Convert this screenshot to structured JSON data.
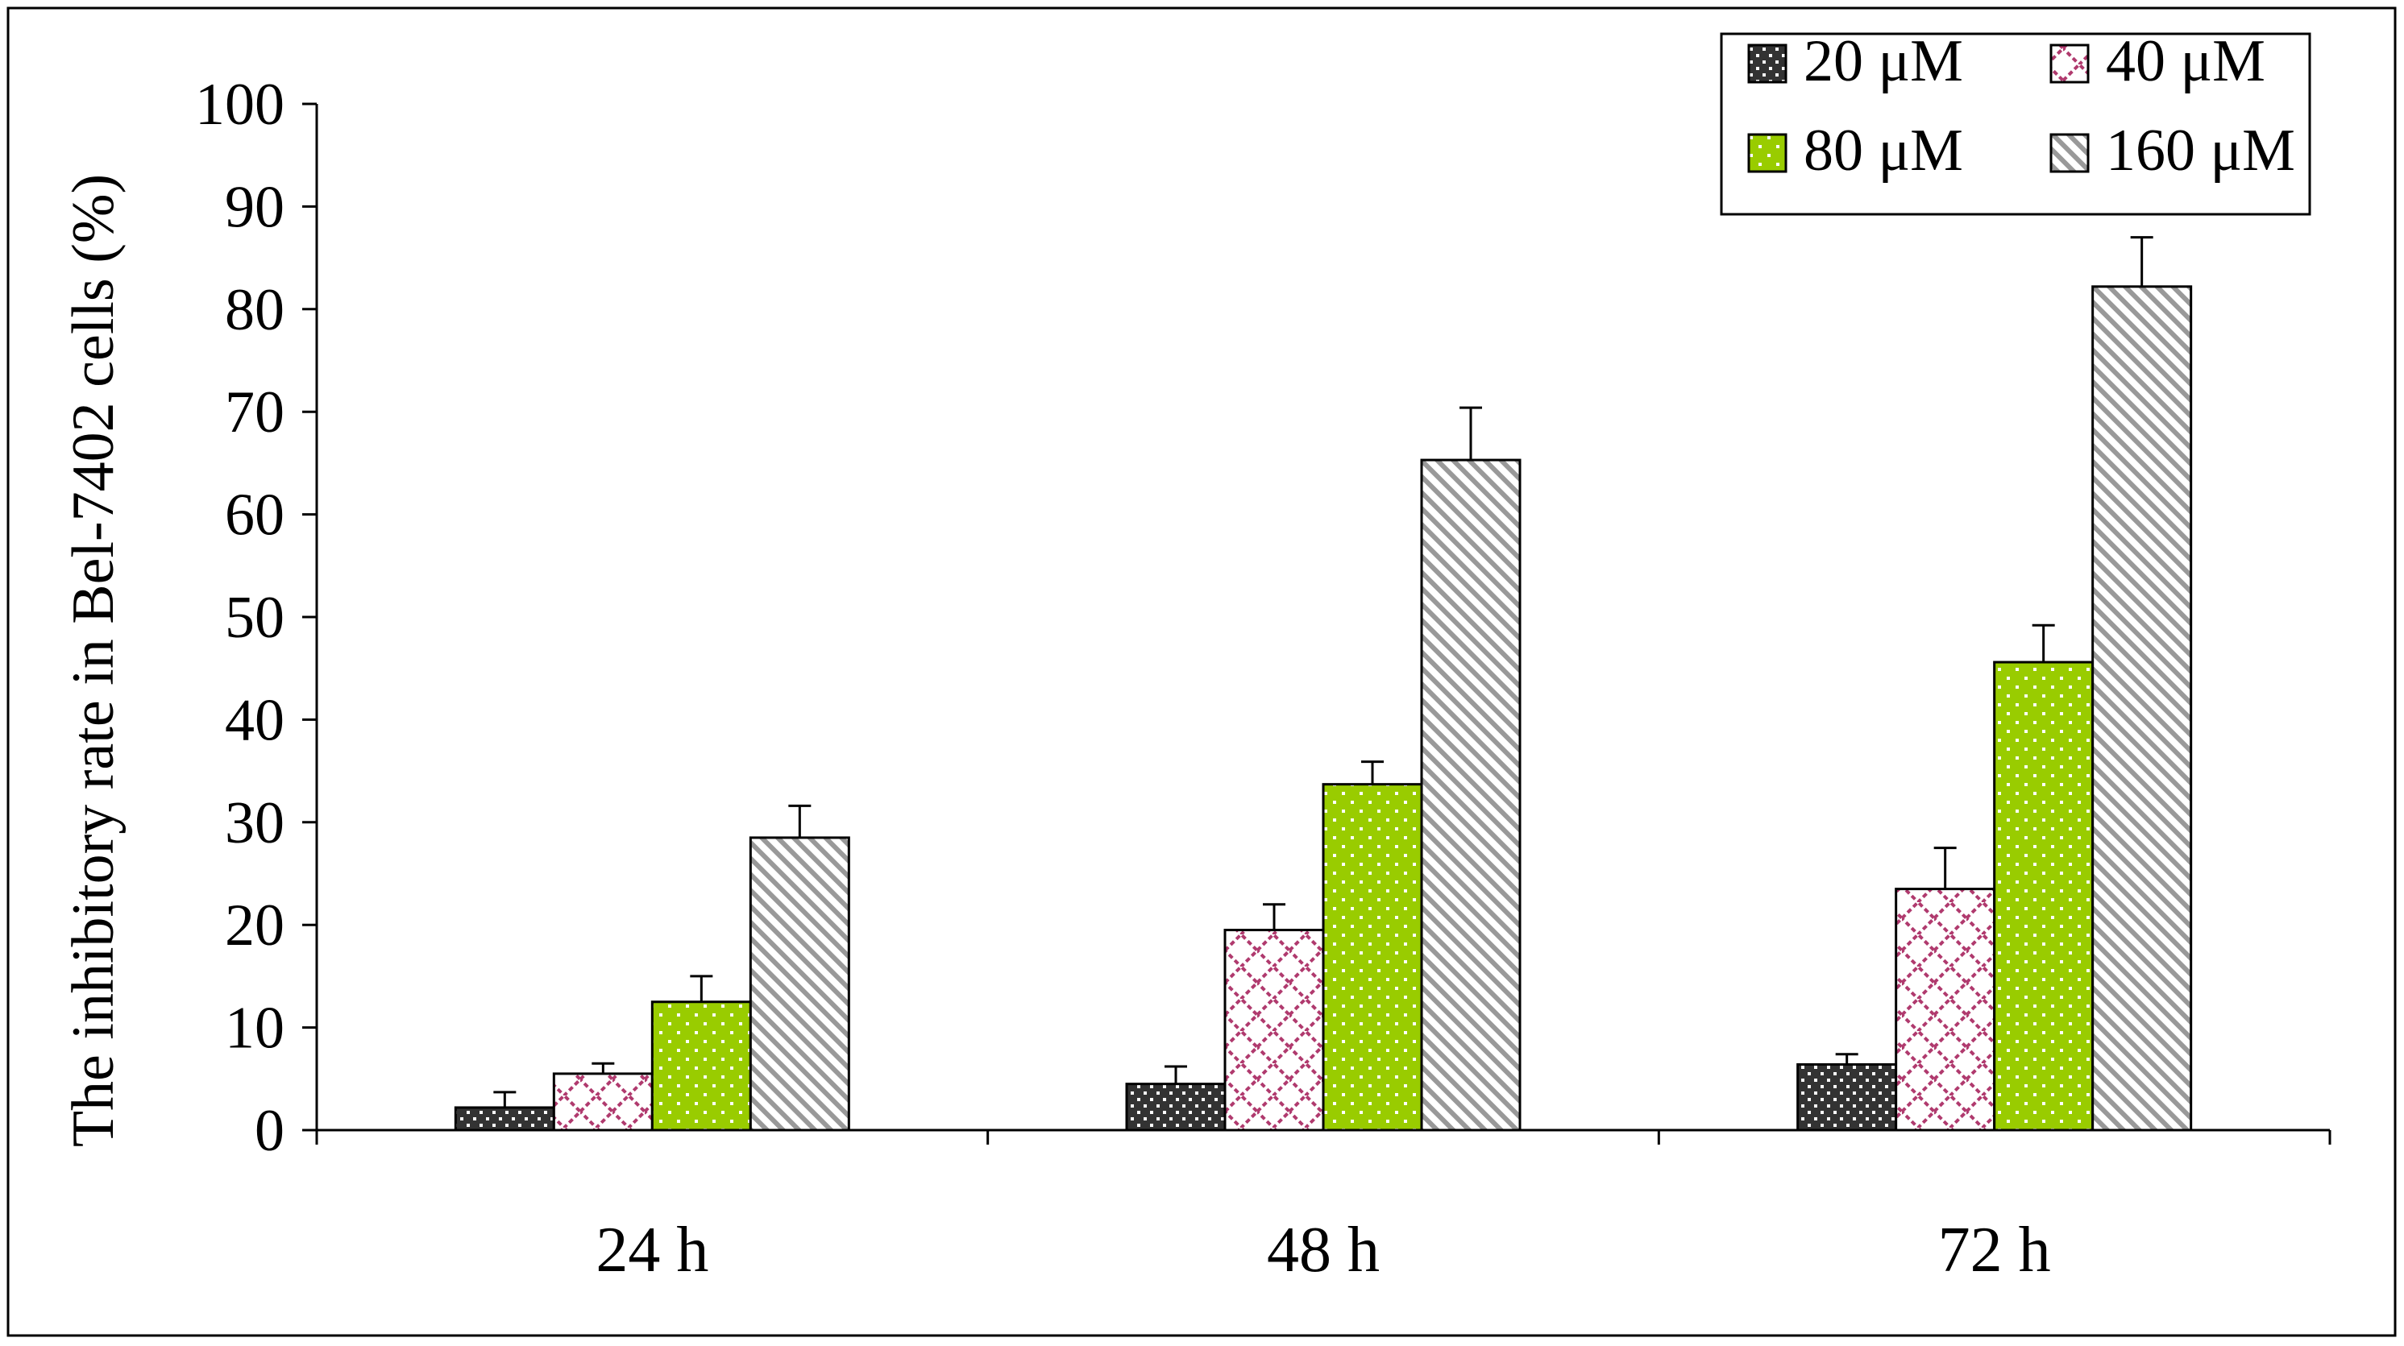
{
  "chart_data": {
    "type": "bar",
    "ylabel": "The inhibitory rate in Bel-7402 cells (%)",
    "xlabel": "",
    "ylim": [
      0,
      100
    ],
    "yticks": [
      0,
      10,
      20,
      30,
      40,
      50,
      60,
      70,
      80,
      90,
      100
    ],
    "categories": [
      "24 h",
      "48 h",
      "72 h"
    ],
    "legend_position": "top-right",
    "series": [
      {
        "name": "20 μM",
        "values": [
          2.2,
          4.5,
          6.4
        ],
        "errors": [
          1.5,
          1.7,
          1.0
        ],
        "color": "#333333",
        "pattern": "dots-on-dark"
      },
      {
        "name": "40 μM",
        "values": [
          5.5,
          19.5,
          23.5
        ],
        "errors": [
          1.0,
          2.5,
          4.0
        ],
        "color": "#b03a6e",
        "pattern": "zigzag-on-white"
      },
      {
        "name": "80 μM",
        "values": [
          12.5,
          33.7,
          45.6
        ],
        "errors": [
          2.5,
          2.2,
          3.6
        ],
        "color": "#99cc00",
        "pattern": "dots-on-green"
      },
      {
        "name": "160 μM",
        "values": [
          28.5,
          65.3,
          82.2
        ],
        "errors": [
          3.1,
          5.1,
          4.8
        ],
        "color": "#999999",
        "pattern": "diagonal-hatch"
      }
    ]
  }
}
